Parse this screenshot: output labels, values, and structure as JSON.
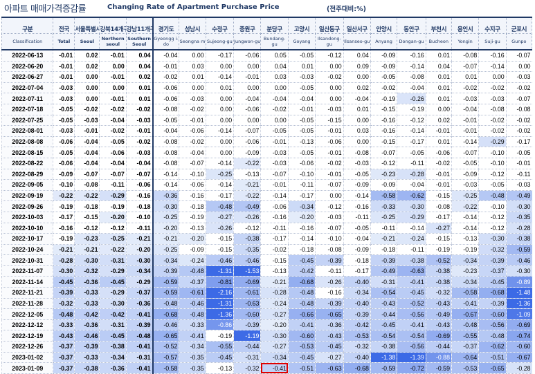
{
  "title": {
    "korean": "아파트 매매가격증감률",
    "english": "Changing Rate of Apartment Purchase Price",
    "unit": "(전주대비:%)"
  },
  "columns": [
    {
      "ko": "구분",
      "en": "Classification"
    },
    {
      "ko": "전국",
      "en": "Total"
    },
    {
      "ko": "서울특별시",
      "en": "Seoul"
    },
    {
      "ko": "강북14개구",
      "en": "Northern seoul"
    },
    {
      "ko": "강남11개구",
      "en": "Southern Seoul"
    },
    {
      "ko": "경기도",
      "en": "Gyeongg i-do"
    },
    {
      "ko": "성남시",
      "en": "Seongna m"
    },
    {
      "ko": "수정구",
      "en": "Sujeong-gu"
    },
    {
      "ko": "중원구",
      "en": "Jungwon-gu"
    },
    {
      "ko": "분당구",
      "en": "Bundang-gu"
    },
    {
      "ko": "고양시",
      "en": "Goyang"
    },
    {
      "ko": "일산동구",
      "en": "Ilsandong-gu"
    },
    {
      "ko": "일산서구",
      "en": "Ilsanseo-gu"
    },
    {
      "ko": "안양시",
      "en": "Anyang"
    },
    {
      "ko": "동안구",
      "en": "Dongan-gu"
    },
    {
      "ko": "부천시",
      "en": "Bucheon"
    },
    {
      "ko": "용인시",
      "en": "Yongin"
    },
    {
      "ko": "수지구",
      "en": "Suji-gu"
    },
    {
      "ko": "군포시",
      "en": "Gunpo"
    }
  ],
  "rows": [
    {
      "date": "2022-06-13",
      "values": [
        "-0.01",
        "0.02",
        "-0.01",
        "0.04",
        "-0.04",
        "0.00",
        "-0.17",
        "-0.06",
        "0.05",
        "-0.05",
        "-0.12",
        "0.04",
        "-0.09",
        "-0.16",
        "0.01",
        "-0.08",
        "-0.16",
        "-0.07"
      ]
    },
    {
      "date": "2022-06-20",
      "values": [
        "-0.01",
        "0.02",
        "0.00",
        "0.04",
        "-0.01",
        "0.03",
        "0.00",
        "0.00",
        "0.04",
        "0.01",
        "0.00",
        "0.09",
        "-0.09",
        "-0.14",
        "0.04",
        "-0.07",
        "-0.14",
        "0.00"
      ]
    },
    {
      "date": "2022-06-27",
      "values": [
        "-0.01",
        "0.00",
        "-0.01",
        "0.02",
        "-0.02",
        "0.01",
        "-0.14",
        "-0.01",
        "0.03",
        "-0.03",
        "-0.02",
        "0.00",
        "-0.05",
        "-0.08",
        "0.01",
        "0.01",
        "0.00",
        "-0.03"
      ]
    },
    {
      "date": "2022-07-04",
      "values": [
        "-0.03",
        "0.00",
        "0.00",
        "0.01",
        "-0.06",
        "0.00",
        "0.01",
        "0.00",
        "0.00",
        "-0.05",
        "0.00",
        "0.02",
        "-0.02",
        "-0.04",
        "0.01",
        "-0.02",
        "-0.02",
        "-0.02"
      ]
    },
    {
      "date": "2022-07-11",
      "values": [
        "-0.03",
        "0.00",
        "-0.01",
        "0.01",
        "-0.06",
        "-0.03",
        "0.00",
        "-0.04",
        "-0.04",
        "-0.04",
        "0.00",
        "-0.04",
        "-0.19",
        "-0.26",
        "0.01",
        "-0.03",
        "-0.03",
        "-0.07"
      ]
    },
    {
      "date": "2022-07-18",
      "values": [
        "-0.05",
        "-0.02",
        "-0.02",
        "-0.02",
        "-0.08",
        "-0.02",
        "0.00",
        "-0.06",
        "-0.02",
        "-0.01",
        "-0.03",
        "0.01",
        "-0.15",
        "-0.19",
        "0.00",
        "-0.04",
        "-0.08",
        "-0.08"
      ]
    },
    {
      "date": "2022-07-25",
      "values": [
        "-0.05",
        "-0.03",
        "-0.04",
        "-0.03",
        "-0.05",
        "-0.01",
        "0.00",
        "0.00",
        "0.00",
        "-0.05",
        "-0.15",
        "0.00",
        "-0.16",
        "-0.12",
        "0.02",
        "-0.01",
        "-0.02",
        "-0.02"
      ]
    },
    {
      "date": "2022-08-01",
      "values": [
        "-0.03",
        "-0.01",
        "-0.02",
        "-0.01",
        "-0.04",
        "-0.06",
        "-0.14",
        "-0.07",
        "-0.05",
        "-0.05",
        "-0.01",
        "0.03",
        "-0.16",
        "-0.14",
        "-0.01",
        "-0.01",
        "-0.02",
        "-0.02"
      ]
    },
    {
      "date": "2022-08-08",
      "values": [
        "-0.06",
        "-0.04",
        "-0.05",
        "-0.02",
        "-0.08",
        "-0.02",
        "0.00",
        "-0.06",
        "-0.01",
        "-0.13",
        "-0.06",
        "0.00",
        "-0.15",
        "-0.17",
        "0.01",
        "-0.14",
        "-0.29",
        "-0.17"
      ]
    },
    {
      "date": "2022-08-15",
      "values": [
        "-0.05",
        "-0.04",
        "-0.06",
        "-0.03",
        "-0.08",
        "-0.04",
        "0.00",
        "-0.09",
        "-0.03",
        "-0.05",
        "-0.01",
        "-0.08",
        "-0.07",
        "-0.05",
        "-0.06",
        "-0.07",
        "-0.10",
        "-0.05"
      ]
    },
    {
      "date": "2022-08-22",
      "values": [
        "-0.06",
        "-0.04",
        "-0.04",
        "-0.04",
        "-0.08",
        "-0.07",
        "-0.14",
        "-0.22",
        "-0.03",
        "-0.06",
        "-0.02",
        "-0.03",
        "-0.12",
        "-0.11",
        "-0.02",
        "-0.05",
        "-0.10",
        "-0.01"
      ]
    },
    {
      "date": "2022-08-29",
      "values": [
        "-0.09",
        "-0.07",
        "-0.07",
        "-0.07",
        "-0.14",
        "-0.10",
        "-0.25",
        "-0.13",
        "-0.07",
        "-0.10",
        "-0.01",
        "-0.05",
        "-0.23",
        "-0.28",
        "-0.01",
        "-0.09",
        "-0.12",
        "-0.11"
      ]
    },
    {
      "date": "2022-09-05",
      "values": [
        "-0.10",
        "-0.08",
        "-0.11",
        "-0.06",
        "-0.14",
        "-0.06",
        "-0.14",
        "-0.21",
        "-0.01",
        "-0.11",
        "-0.07",
        "-0.09",
        "-0.09",
        "-0.04",
        "-0.01",
        "-0.03",
        "-0.05",
        "-0.03"
      ]
    },
    {
      "date": "2022-09-19",
      "values": [
        "-0.22",
        "-0.22",
        "-0.29",
        "-0.16",
        "-0.36",
        "-0.16",
        "-0.17",
        "-0.22",
        "-0.14",
        "-0.17",
        "0.00",
        "-0.14",
        "-0.58",
        "-0.62",
        "-0.15",
        "-0.25",
        "-0.48",
        "-0.49"
      ]
    },
    {
      "date": "2022-09-26",
      "values": [
        "-0.19",
        "-0.18",
        "-0.19",
        "-0.18",
        "-0.30",
        "-0.18",
        "-0.48",
        "-0.49",
        "-0.06",
        "-0.34",
        "-0.12",
        "-0.16",
        "-0.33",
        "-0.30",
        "-0.08",
        "-0.22",
        "-0.10",
        "-0.30"
      ]
    },
    {
      "date": "2022-10-03",
      "values": [
        "-0.17",
        "-0.15",
        "-0.20",
        "-0.10",
        "-0.25",
        "-0.19",
        "-0.27",
        "-0.26",
        "-0.16",
        "-0.20",
        "-0.03",
        "-0.11",
        "-0.25",
        "-0.29",
        "-0.17",
        "-0.14",
        "-0.12",
        "-0.35"
      ]
    },
    {
      "date": "2022-10-10",
      "values": [
        "-0.16",
        "-0.12",
        "-0.12",
        "-0.11",
        "-0.20",
        "-0.13",
        "-0.26",
        "-0.12",
        "-0.11",
        "-0.16",
        "-0.07",
        "-0.05",
        "-0.11",
        "-0.14",
        "-0.27",
        "-0.14",
        "-0.12",
        "-0.28"
      ]
    },
    {
      "date": "2022-10-17",
      "values": [
        "-0.19",
        "-0.23",
        "-0.25",
        "-0.21",
        "-0.21",
        "-0.20",
        "-0.15",
        "-0.38",
        "-0.17",
        "-0.14",
        "-0.10",
        "-0.04",
        "-0.21",
        "-0.24",
        "-0.15",
        "-0.13",
        "-0.30",
        "-0.38"
      ]
    },
    {
      "date": "2022-10-24",
      "values": [
        "-0.21",
        "-0.21",
        "-0.22",
        "-0.20",
        "-0.25",
        "-0.09",
        "-0.15",
        "-0.35",
        "-0.02",
        "-0.18",
        "-0.08",
        "-0.09",
        "-0.18",
        "-0.11",
        "-0.19",
        "-0.19",
        "-0.32",
        "-0.59"
      ]
    },
    {
      "date": "2022-10-31",
      "values": [
        "-0.28",
        "-0.30",
        "-0.31",
        "-0.30",
        "-0.34",
        "-0.24",
        "-0.46",
        "-0.46",
        "-0.15",
        "-0.45",
        "-0.39",
        "-0.18",
        "-0.39",
        "-0.38",
        "-0.52",
        "-0.34",
        "-0.39",
        "-0.46"
      ]
    },
    {
      "date": "2022-11-07",
      "values": [
        "-0.30",
        "-0.32",
        "-0.29",
        "-0.34",
        "-0.39",
        "-0.48",
        "-1.31",
        "-1.53",
        "-0.13",
        "-0.42",
        "-0.11",
        "-0.17",
        "-0.49",
        "-0.63",
        "-0.38",
        "-0.23",
        "-0.37",
        "-0.30"
      ]
    },
    {
      "date": "2022-11-14",
      "values": [
        "-0.45",
        "-0.36",
        "-0.45",
        "-0.29",
        "-0.59",
        "-0.37",
        "-0.81",
        "-0.69",
        "-0.21",
        "-0.68",
        "-0.26",
        "-0.40",
        "-0.31",
        "-0.41",
        "-0.38",
        "-0.34",
        "-0.45",
        "-0.89"
      ]
    },
    {
      "date": "2022-11-21",
      "values": [
        "-0.39",
        "-0.33",
        "-0.29",
        "-0.37",
        "-0.59",
        "-0.61",
        "-2.16",
        "-0.61",
        "-0.28",
        "-0.48",
        "-0.16",
        "-0.34",
        "-0.54",
        "-0.45",
        "-0.32",
        "-0.58",
        "-0.68",
        "-1.48"
      ]
    },
    {
      "date": "2022-11-28",
      "values": [
        "-0.32",
        "-0.33",
        "-0.30",
        "-0.36",
        "-0.48",
        "-0.46",
        "-1.31",
        "-0.63",
        "-0.24",
        "-0.48",
        "-0.39",
        "-0.40",
        "-0.43",
        "-0.52",
        "-0.43",
        "-0.41",
        "-0.39",
        "-1.36"
      ]
    },
    {
      "date": "2022-12-05",
      "values": [
        "-0.48",
        "-0.42",
        "-0.42",
        "-0.41",
        "-0.68",
        "-0.48",
        "-1.36",
        "-0.60",
        "-0.27",
        "-0.66",
        "-0.65",
        "-0.39",
        "-0.44",
        "-0.56",
        "-0.49",
        "-0.67",
        "-0.60",
        "-1.09"
      ]
    },
    {
      "date": "2022-12-12",
      "values": [
        "-0.33",
        "-0.36",
        "-0.31",
        "-0.39",
        "-0.46",
        "-0.33",
        "-0.86",
        "-0.39",
        "-0.20",
        "-0.41",
        "-0.36",
        "-0.42",
        "-0.45",
        "-0.41",
        "-0.43",
        "-0.48",
        "-0.56",
        "-0.69"
      ]
    },
    {
      "date": "2022-12-19",
      "values": [
        "-0.43",
        "-0.46",
        "-0.45",
        "-0.48",
        "-0.65",
        "-0.41",
        "-0.19",
        "-1.19",
        "-0.30",
        "-0.60",
        "-0.43",
        "-0.53",
        "-0.54",
        "-0.54",
        "-0.69",
        "-0.55",
        "-0.48",
        "-0.74"
      ]
    },
    {
      "date": "2022-12-26",
      "values": [
        "-0.37",
        "-0.39",
        "-0.38",
        "-0.41",
        "-0.52",
        "-0.34",
        "-0.55",
        "-0.44",
        "-0.27",
        "-0.53",
        "-0.45",
        "-0.32",
        "-0.38",
        "-0.56",
        "-0.44",
        "-0.37",
        "-0.62",
        "-0.60"
      ]
    },
    {
      "date": "2023-01-02",
      "values": [
        "-0.37",
        "-0.33",
        "-0.34",
        "-0.31",
        "-0.57",
        "-0.35",
        "-0.45",
        "-0.31",
        "-0.34",
        "-0.45",
        "-0.27",
        "-0.40",
        "-1.38",
        "-1.39",
        "-0.88",
        "-0.64",
        "-0.51",
        "-0.67"
      ]
    },
    {
      "date": "2023-01-09",
      "values": [
        "-0.37",
        "-0.38",
        "-0.36",
        "-0.41",
        "-0.58",
        "-0.35",
        "-0.13",
        "-0.32",
        "-0.41",
        "-0.51",
        "-0.63",
        "-0.68",
        "-0.59",
        "-0.72",
        "-0.59",
        "-0.53",
        "-0.65",
        "-0.28"
      ]
    }
  ],
  "highlight": {
    "row": 29,
    "col": 9
  },
  "colors": {
    "header_text": "#1f3864",
    "highlight_border": "#e00000"
  }
}
